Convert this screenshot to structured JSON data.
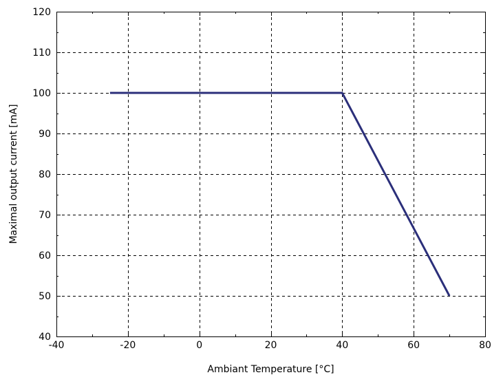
{
  "chart_data": {
    "type": "line",
    "title": "",
    "xlabel": "Ambiant Temperature [°C]",
    "ylabel": "Maximal output current [mA]",
    "xlim": [
      -40,
      80
    ],
    "ylim": [
      40,
      120
    ],
    "xticks": [
      -40,
      -20,
      0,
      20,
      40,
      60,
      80
    ],
    "yticks": [
      40,
      50,
      60,
      70,
      80,
      90,
      100,
      110,
      120
    ],
    "grid": true,
    "legend": "none",
    "series": [
      {
        "color": "#2b2f7a",
        "x": [
          -25,
          40,
          70
        ],
        "y": [
          100,
          100,
          50
        ]
      }
    ]
  }
}
